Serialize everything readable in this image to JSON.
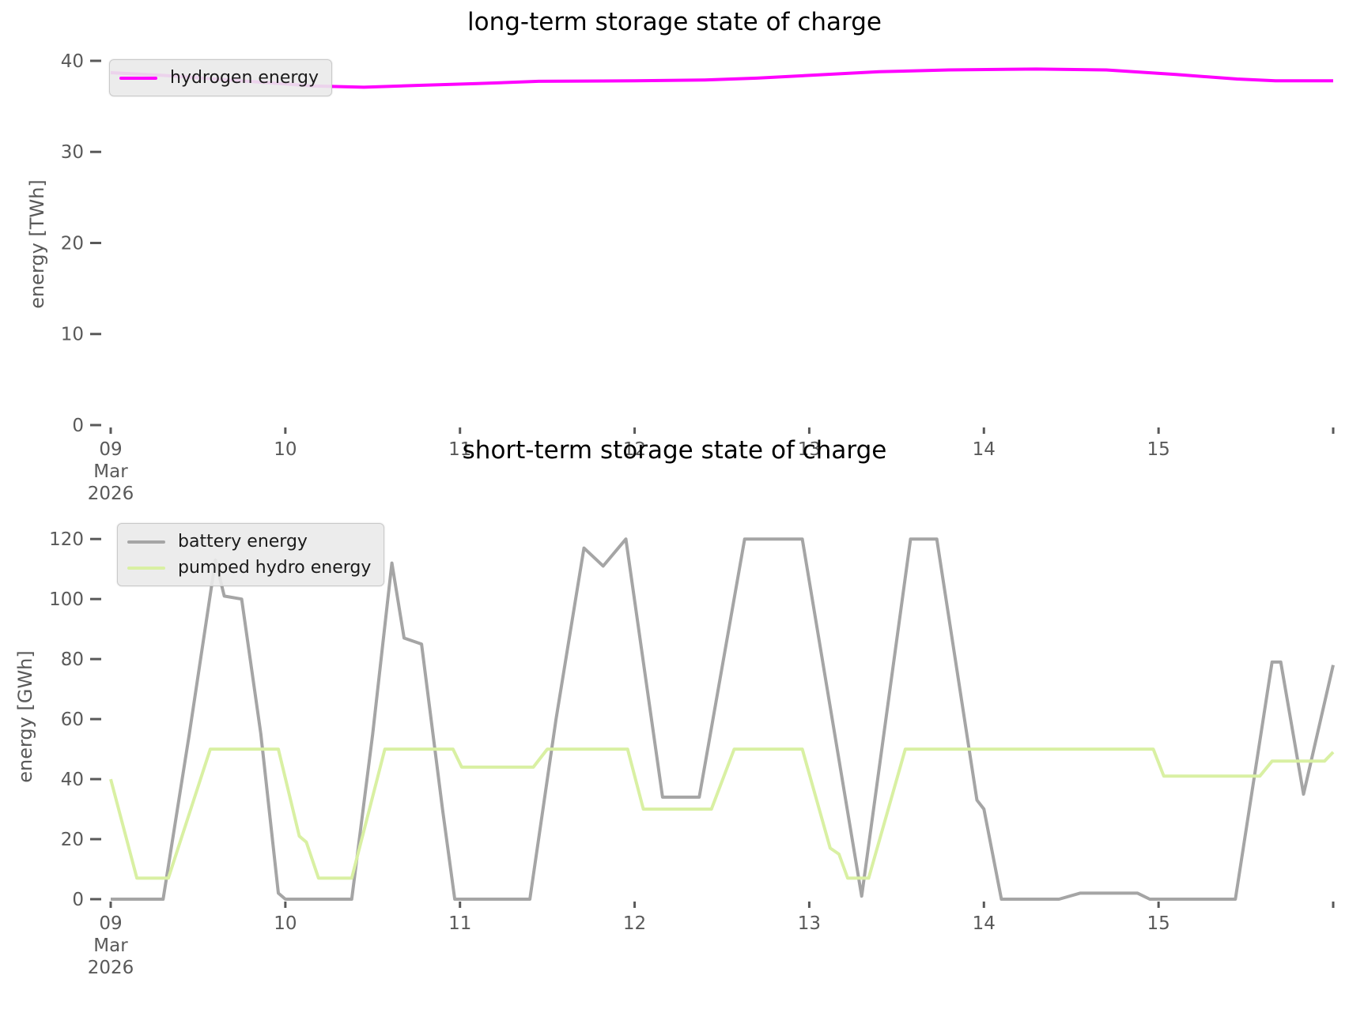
{
  "figure": {
    "background": "#ffffff"
  },
  "colors": {
    "hydrogen": "#ff00ff",
    "battery": "#a5a5a5",
    "pumped_hydro": "#d9f0a3",
    "tick_text": "#595959",
    "title_text": "#000000",
    "legend_background": "#eaeaea"
  },
  "chart_data": [
    {
      "type": "line",
      "title": "long-term storage state of charge",
      "ylabel": "energy [TWh]",
      "xlabel": "",
      "x_unit": "day of month (March 2026)",
      "xlim": [
        9,
        16
      ],
      "ylim": [
        0,
        41.3
      ],
      "grid": false,
      "y_ticks": [
        {
          "value": 0,
          "label": "0"
        },
        {
          "value": 10,
          "label": "10"
        },
        {
          "value": 20,
          "label": "20"
        },
        {
          "value": 30,
          "label": "30"
        },
        {
          "value": 40,
          "label": "40"
        }
      ],
      "x_ticks": [
        {
          "value": 9,
          "label": "09",
          "sublabels": [
            "Mar",
            "2026"
          ]
        },
        {
          "value": 10,
          "label": "10",
          "sublabels": []
        },
        {
          "value": 11,
          "label": "11",
          "sublabels": []
        },
        {
          "value": 12,
          "label": "12",
          "sublabels": []
        },
        {
          "value": 13,
          "label": "13",
          "sublabels": []
        },
        {
          "value": 14,
          "label": "14",
          "sublabels": []
        },
        {
          "value": 15,
          "label": "15",
          "sublabels": []
        },
        {
          "value": 16,
          "label": "",
          "sublabels": []
        }
      ],
      "legend": {
        "position": "upper-left",
        "entries": [
          {
            "label": "hydrogen energy",
            "color": "#ff00ff"
          }
        ]
      },
      "series": [
        {
          "name": "hydrogen energy",
          "color": "#ff00ff",
          "width": 4,
          "points": [
            [
              9.0,
              38.7
            ],
            [
              9.3,
              38.4
            ],
            [
              9.6,
              38.0
            ],
            [
              9.9,
              37.6
            ],
            [
              10.15,
              37.25
            ],
            [
              10.45,
              37.1
            ],
            [
              10.75,
              37.3
            ],
            [
              11.1,
              37.5
            ],
            [
              11.45,
              37.75
            ],
            [
              12.0,
              37.8
            ],
            [
              12.4,
              37.9
            ],
            [
              12.7,
              38.1
            ],
            [
              13.0,
              38.4
            ],
            [
              13.4,
              38.8
            ],
            [
              13.8,
              39.0
            ],
            [
              14.3,
              39.1
            ],
            [
              14.7,
              39.0
            ],
            [
              15.1,
              38.5
            ],
            [
              15.45,
              38.0
            ],
            [
              15.67,
              37.8
            ],
            [
              16.0,
              37.8
            ]
          ]
        }
      ]
    },
    {
      "type": "line",
      "title": "short-term storage state of charge",
      "ylabel": "energy [GWh]",
      "xlabel": "",
      "x_unit": "day of month (March 2026)",
      "xlim": [
        9,
        16
      ],
      "ylim": [
        0,
        124
      ],
      "grid": false,
      "y_ticks": [
        {
          "value": 0,
          "label": "0"
        },
        {
          "value": 20,
          "label": "20"
        },
        {
          "value": 40,
          "label": "40"
        },
        {
          "value": 60,
          "label": "60"
        },
        {
          "value": 80,
          "label": "80"
        },
        {
          "value": 100,
          "label": "100"
        },
        {
          "value": 120,
          "label": "120"
        }
      ],
      "x_ticks": [
        {
          "value": 9,
          "label": "09",
          "sublabels": [
            "Mar",
            "2026"
          ]
        },
        {
          "value": 10,
          "label": "10",
          "sublabels": []
        },
        {
          "value": 11,
          "label": "11",
          "sublabels": []
        },
        {
          "value": 12,
          "label": "12",
          "sublabels": []
        },
        {
          "value": 13,
          "label": "13",
          "sublabels": []
        },
        {
          "value": 14,
          "label": "14",
          "sublabels": []
        },
        {
          "value": 15,
          "label": "15",
          "sublabels": []
        },
        {
          "value": 16,
          "label": "",
          "sublabels": []
        }
      ],
      "legend": {
        "position": "upper-left",
        "entries": [
          {
            "label": "battery energy",
            "color": "#a5a5a5"
          },
          {
            "label": "pumped hydro energy",
            "color": "#d9f0a3"
          }
        ]
      },
      "series": [
        {
          "name": "battery energy",
          "color": "#a5a5a5",
          "width": 4,
          "points": [
            [
              9.0,
              0
            ],
            [
              9.3,
              0
            ],
            [
              9.45,
              55
            ],
            [
              9.6,
              113
            ],
            [
              9.65,
              101
            ],
            [
              9.75,
              100
            ],
            [
              9.86,
              55
            ],
            [
              9.96,
              2
            ],
            [
              10.0,
              0
            ],
            [
              10.38,
              0
            ],
            [
              10.5,
              55
            ],
            [
              10.61,
              112
            ],
            [
              10.68,
              87
            ],
            [
              10.78,
              85
            ],
            [
              10.9,
              30
            ],
            [
              10.97,
              0
            ],
            [
              11.4,
              0
            ],
            [
              11.55,
              60
            ],
            [
              11.71,
              117
            ],
            [
              11.82,
              111
            ],
            [
              11.95,
              120
            ],
            [
              12.16,
              34
            ],
            [
              12.37,
              34
            ],
            [
              12.63,
              120
            ],
            [
              12.96,
              120
            ],
            [
              13.3,
              1
            ],
            [
              13.58,
              120
            ],
            [
              13.73,
              120
            ],
            [
              13.96,
              33
            ],
            [
              14.0,
              30
            ],
            [
              14.1,
              0
            ],
            [
              14.43,
              0
            ],
            [
              14.55,
              2
            ],
            [
              14.88,
              2
            ],
            [
              14.95,
              0
            ],
            [
              15.44,
              0
            ],
            [
              15.65,
              79
            ],
            [
              15.7,
              79
            ],
            [
              15.83,
              35
            ],
            [
              16.0,
              78
            ]
          ]
        },
        {
          "name": "pumped hydro energy",
          "color": "#d9f0a3",
          "width": 4,
          "points": [
            [
              9.0,
              40
            ],
            [
              9.15,
              7
            ],
            [
              9.33,
              7
            ],
            [
              9.57,
              50
            ],
            [
              9.96,
              50
            ],
            [
              10.08,
              21
            ],
            [
              10.12,
              19
            ],
            [
              10.19,
              7
            ],
            [
              10.38,
              7
            ],
            [
              10.57,
              50
            ],
            [
              10.96,
              50
            ],
            [
              11.01,
              44
            ],
            [
              11.42,
              44
            ],
            [
              11.5,
              50
            ],
            [
              11.96,
              50
            ],
            [
              12.05,
              30
            ],
            [
              12.44,
              30
            ],
            [
              12.57,
              50
            ],
            [
              12.96,
              50
            ],
            [
              13.12,
              17
            ],
            [
              13.17,
              15
            ],
            [
              13.22,
              7
            ],
            [
              13.34,
              7
            ],
            [
              13.55,
              50
            ],
            [
              14.97,
              50
            ],
            [
              15.03,
              41
            ],
            [
              15.58,
              41
            ],
            [
              15.65,
              46
            ],
            [
              15.95,
              46
            ],
            [
              16.0,
              49
            ]
          ]
        }
      ]
    }
  ]
}
